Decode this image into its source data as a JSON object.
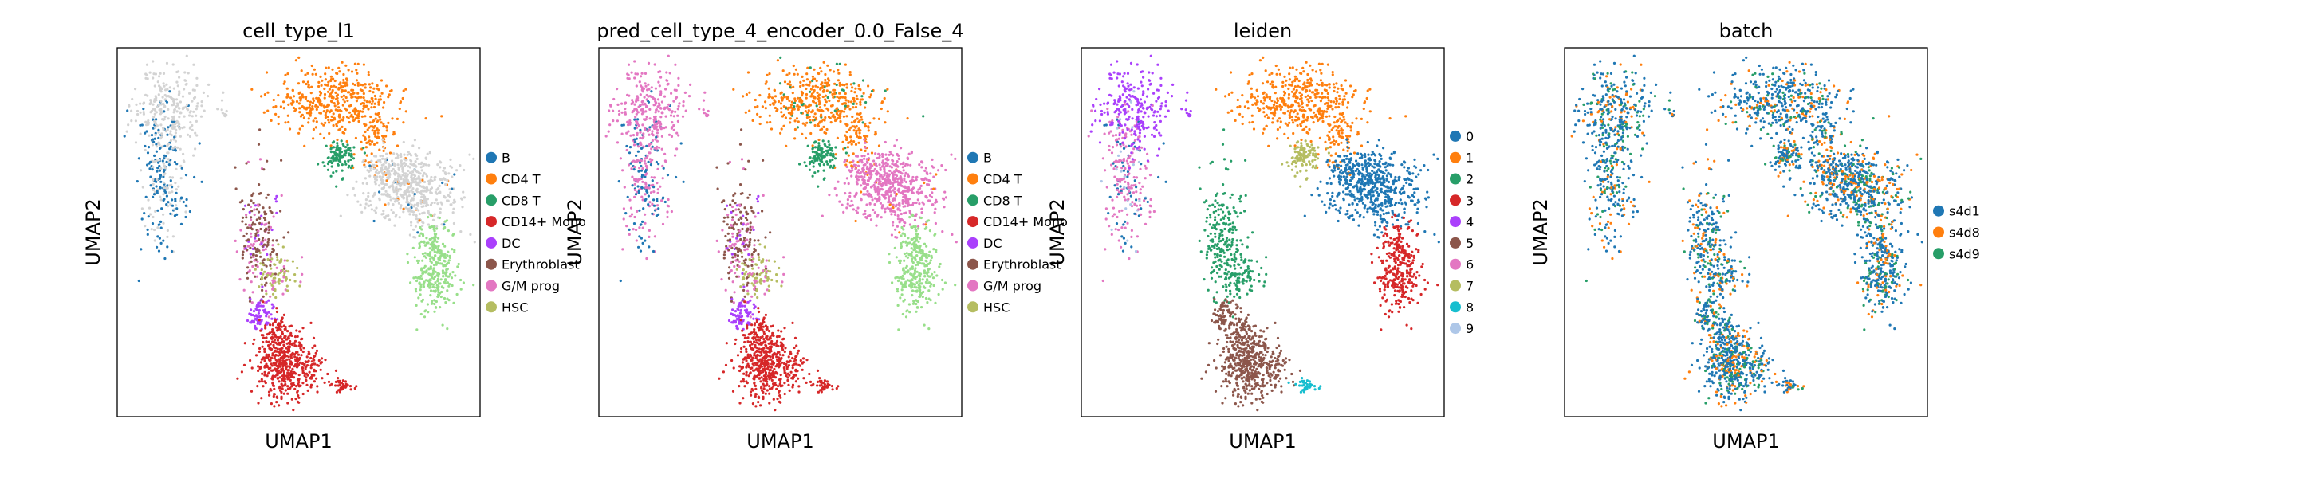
{
  "figure": {
    "background": "#ffffff"
  },
  "chart_data": [
    {
      "type": "scatter",
      "title": "cell_type_l1",
      "xlabel": "UMAP1",
      "ylabel": "UMAP2",
      "xlim": [
        0,
        100
      ],
      "ylim": [
        0,
        100
      ],
      "grid": false,
      "legend_position": "right",
      "legend": [
        {
          "label": "B",
          "color": "#1f77b4"
        },
        {
          "label": "CD4 T",
          "color": "#ff7f0e"
        },
        {
          "label": "CD8 T",
          "color": "#279e68"
        },
        {
          "label": "CD14+ Mono",
          "color": "#d62728"
        },
        {
          "label": "DC",
          "color": "#aa40fc"
        },
        {
          "label": "Erythroblast",
          "color": "#8c564b"
        },
        {
          "label": "G/M prog",
          "color": "#e377c2"
        },
        {
          "label": "HSC",
          "color": "#b5bd61"
        }
      ]
    },
    {
      "type": "scatter",
      "title": "pred_cell_type_4_encoder_0.0_False_4",
      "xlabel": "UMAP1",
      "ylabel": "UMAP2",
      "xlim": [
        0,
        100
      ],
      "ylim": [
        0,
        100
      ],
      "grid": false,
      "legend_position": "right",
      "legend": [
        {
          "label": "B",
          "color": "#1f77b4"
        },
        {
          "label": "CD4 T",
          "color": "#ff7f0e"
        },
        {
          "label": "CD8 T",
          "color": "#279e68"
        },
        {
          "label": "CD14+ Mono",
          "color": "#d62728"
        },
        {
          "label": "DC",
          "color": "#aa40fc"
        },
        {
          "label": "Erythroblast",
          "color": "#8c564b"
        },
        {
          "label": "G/M prog",
          "color": "#e377c2"
        },
        {
          "label": "HSC",
          "color": "#b5bd61"
        }
      ]
    },
    {
      "type": "scatter",
      "title": "leiden",
      "xlabel": "UMAP1",
      "ylabel": "UMAP2",
      "xlim": [
        0,
        100
      ],
      "ylim": [
        0,
        100
      ],
      "grid": false,
      "legend_position": "right",
      "legend": [
        {
          "label": "0",
          "color": "#1f77b4"
        },
        {
          "label": "1",
          "color": "#ff7f0e"
        },
        {
          "label": "2",
          "color": "#279e68"
        },
        {
          "label": "3",
          "color": "#d62728"
        },
        {
          "label": "4",
          "color": "#aa40fc"
        },
        {
          "label": "5",
          "color": "#8c564b"
        },
        {
          "label": "6",
          "color": "#e377c2"
        },
        {
          "label": "7",
          "color": "#b5bd61"
        },
        {
          "label": "8",
          "color": "#17becf"
        },
        {
          "label": "9",
          "color": "#aec7e8"
        }
      ]
    },
    {
      "type": "scatter",
      "title": "batch",
      "xlabel": "UMAP1",
      "ylabel": "UMAP2",
      "xlim": [
        0,
        100
      ],
      "ylim": [
        0,
        100
      ],
      "grid": false,
      "legend_position": "right",
      "legend": [
        {
          "label": "s4d1",
          "color": "#1f77b4"
        },
        {
          "label": "s4d8",
          "color": "#ff7f0e"
        },
        {
          "label": "s4d9",
          "color": "#279e68"
        }
      ]
    }
  ]
}
